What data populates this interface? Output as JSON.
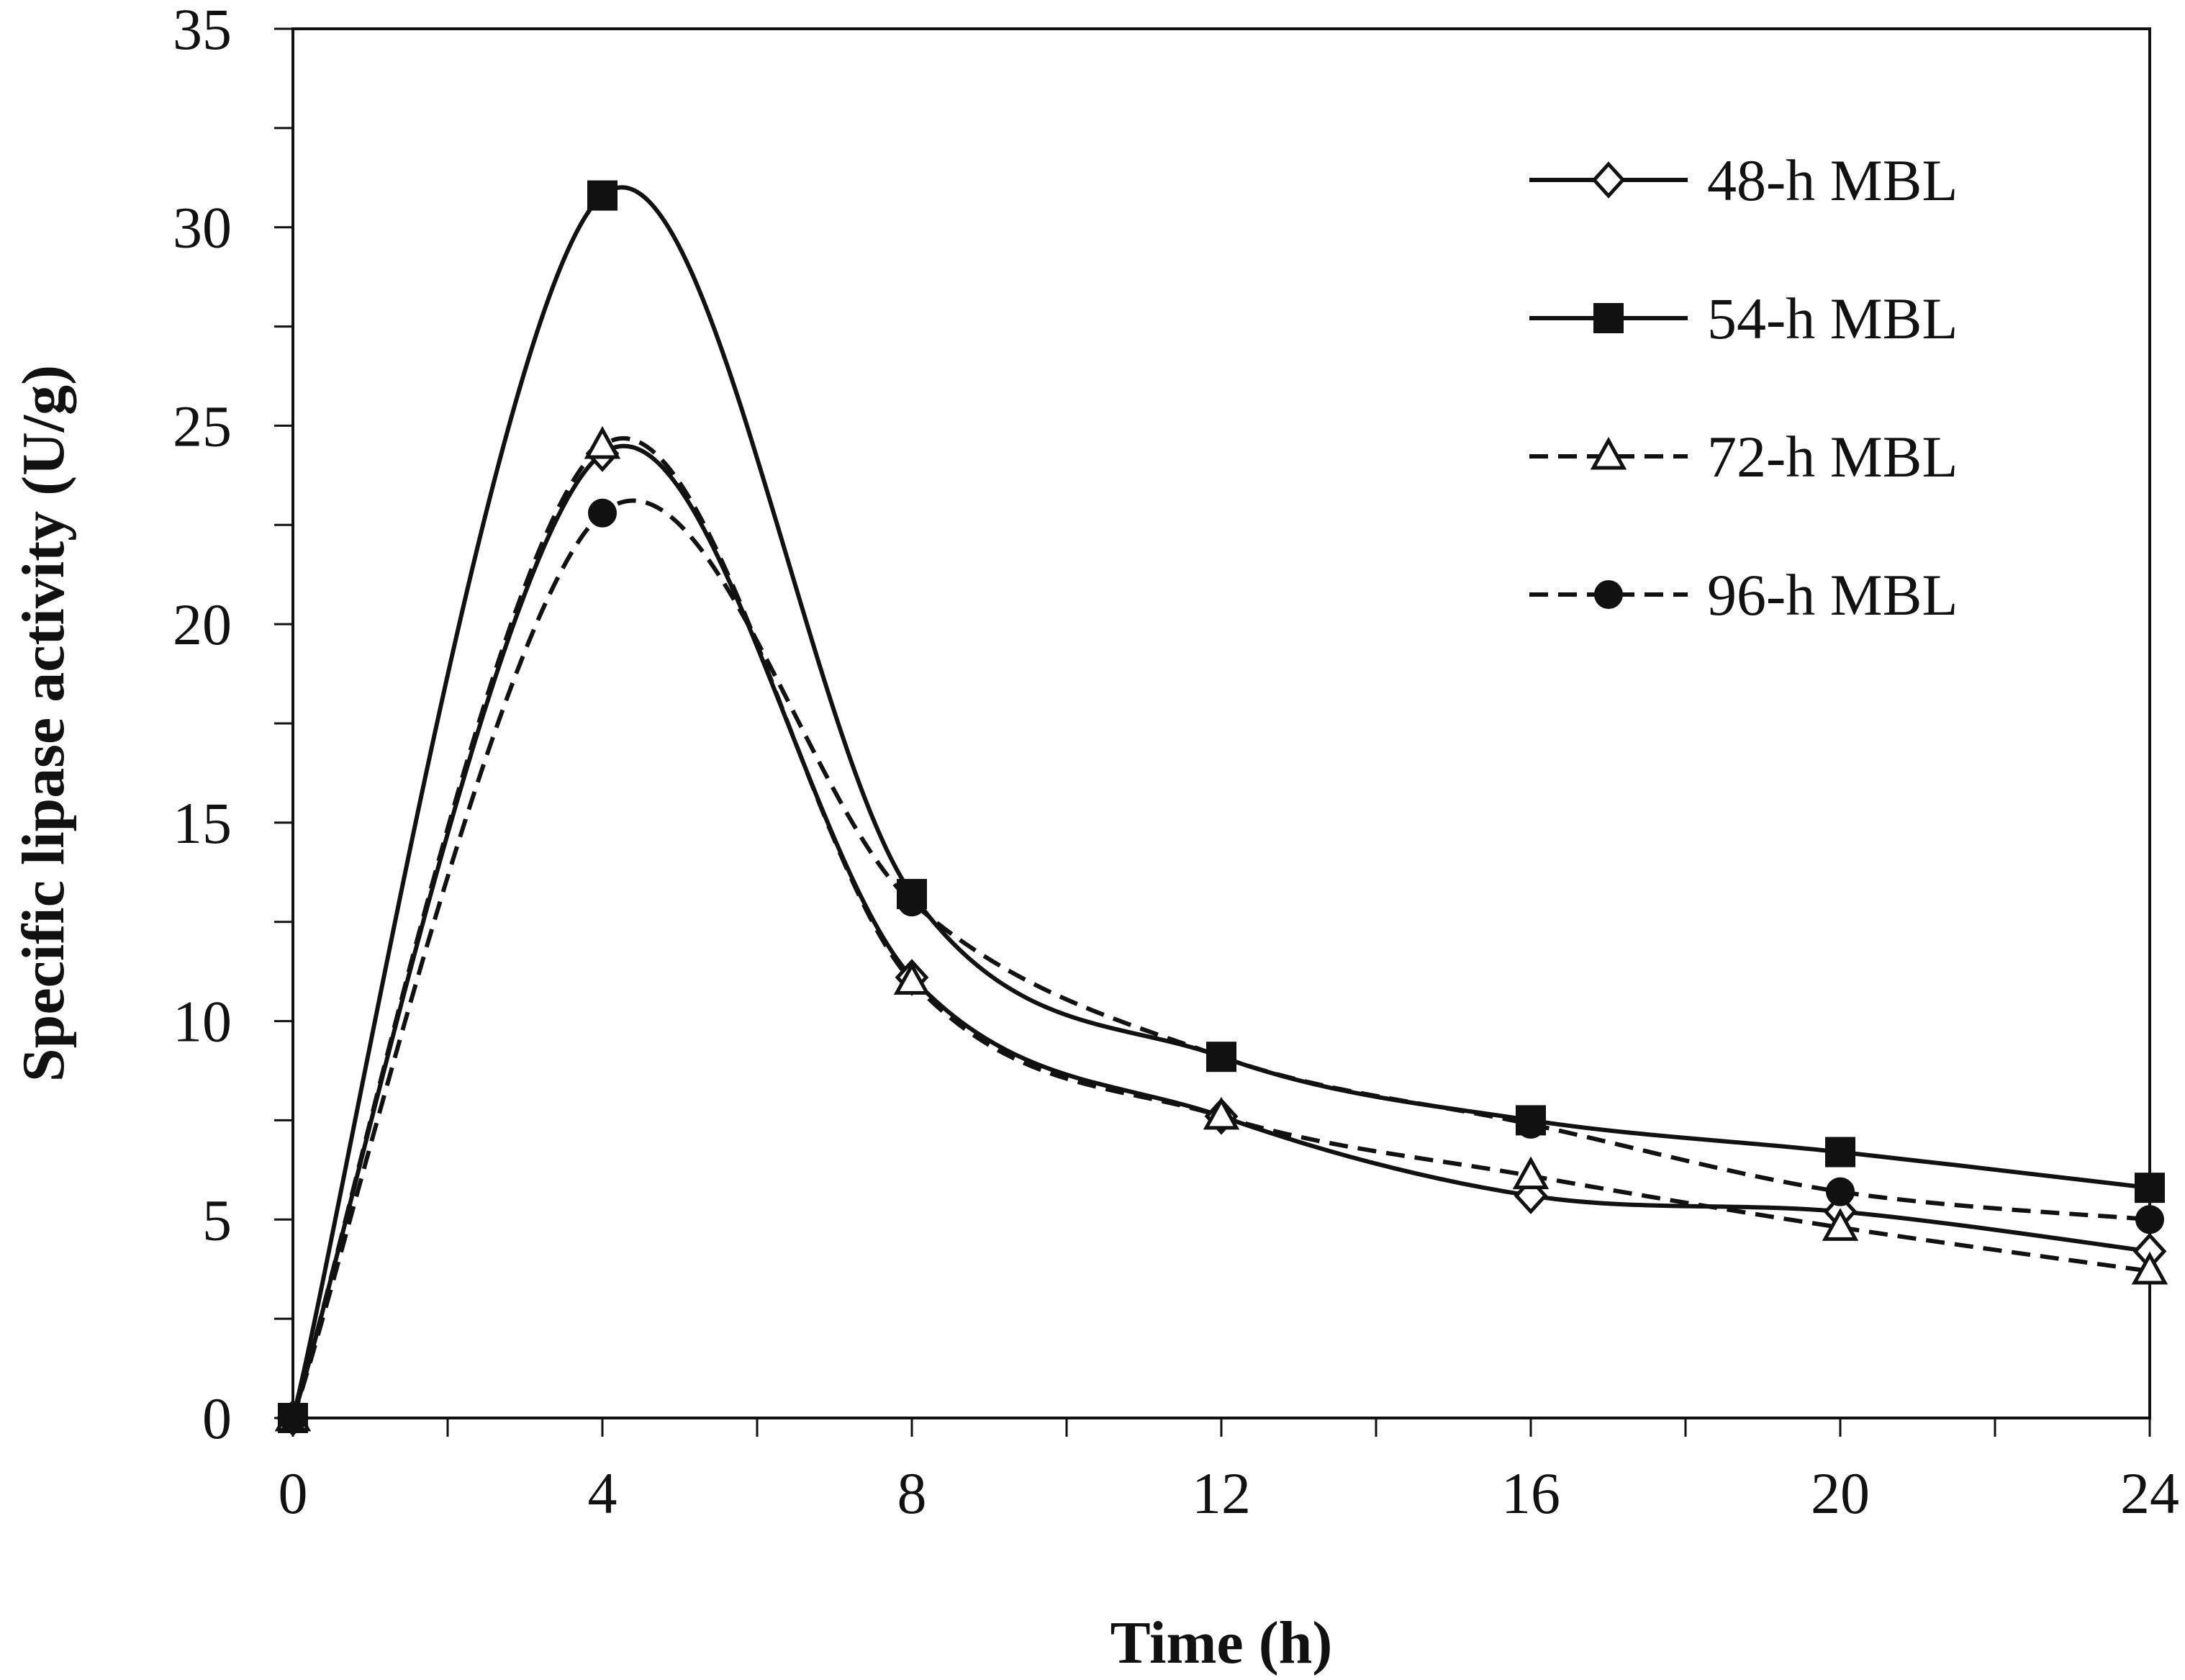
{
  "chart_data": {
    "type": "line",
    "title": "",
    "xlabel": "Time (h)",
    "ylabel": "Specific lipase activity (U/g)",
    "xlim": [
      0,
      24
    ],
    "ylim": [
      0,
      35
    ],
    "xticks": [
      0,
      4,
      8,
      12,
      16,
      20,
      24
    ],
    "yticks": [
      0,
      5,
      10,
      15,
      20,
      25,
      30,
      35
    ],
    "x_tick_labels": [
      "0",
      "4",
      "8",
      "12",
      "16",
      "20",
      "24"
    ],
    "y_tick_labels": [
      "0",
      "5",
      "10",
      "15",
      "20",
      "25",
      "30",
      "35"
    ],
    "grid": false,
    "legend_position": "top-right",
    "x": [
      0,
      4,
      8,
      12,
      16,
      20,
      24
    ],
    "series": [
      {
        "name": "48-h MBL",
        "values": [
          0,
          24.3,
          11.1,
          7.6,
          5.6,
          5.2,
          4.2
        ],
        "marker": "diamond-open",
        "line_style": "solid",
        "color": "#111111"
      },
      {
        "name": "54-h MBL",
        "values": [
          0,
          30.8,
          13.2,
          9.1,
          7.5,
          6.7,
          5.8
        ],
        "marker": "square-filled",
        "line_style": "solid",
        "color": "#111111"
      },
      {
        "name": "72-h MBL",
        "values": [
          0,
          24.5,
          11.0,
          7.6,
          6.1,
          4.8,
          3.7
        ],
        "marker": "triangle-open",
        "line_style": "dashed",
        "color": "#111111"
      },
      {
        "name": "96-h MBL",
        "values": [
          0,
          22.8,
          13.0,
          9.1,
          7.4,
          5.7,
          5.0
        ],
        "marker": "circle-filled",
        "line_style": "dashed",
        "color": "#111111"
      }
    ]
  }
}
